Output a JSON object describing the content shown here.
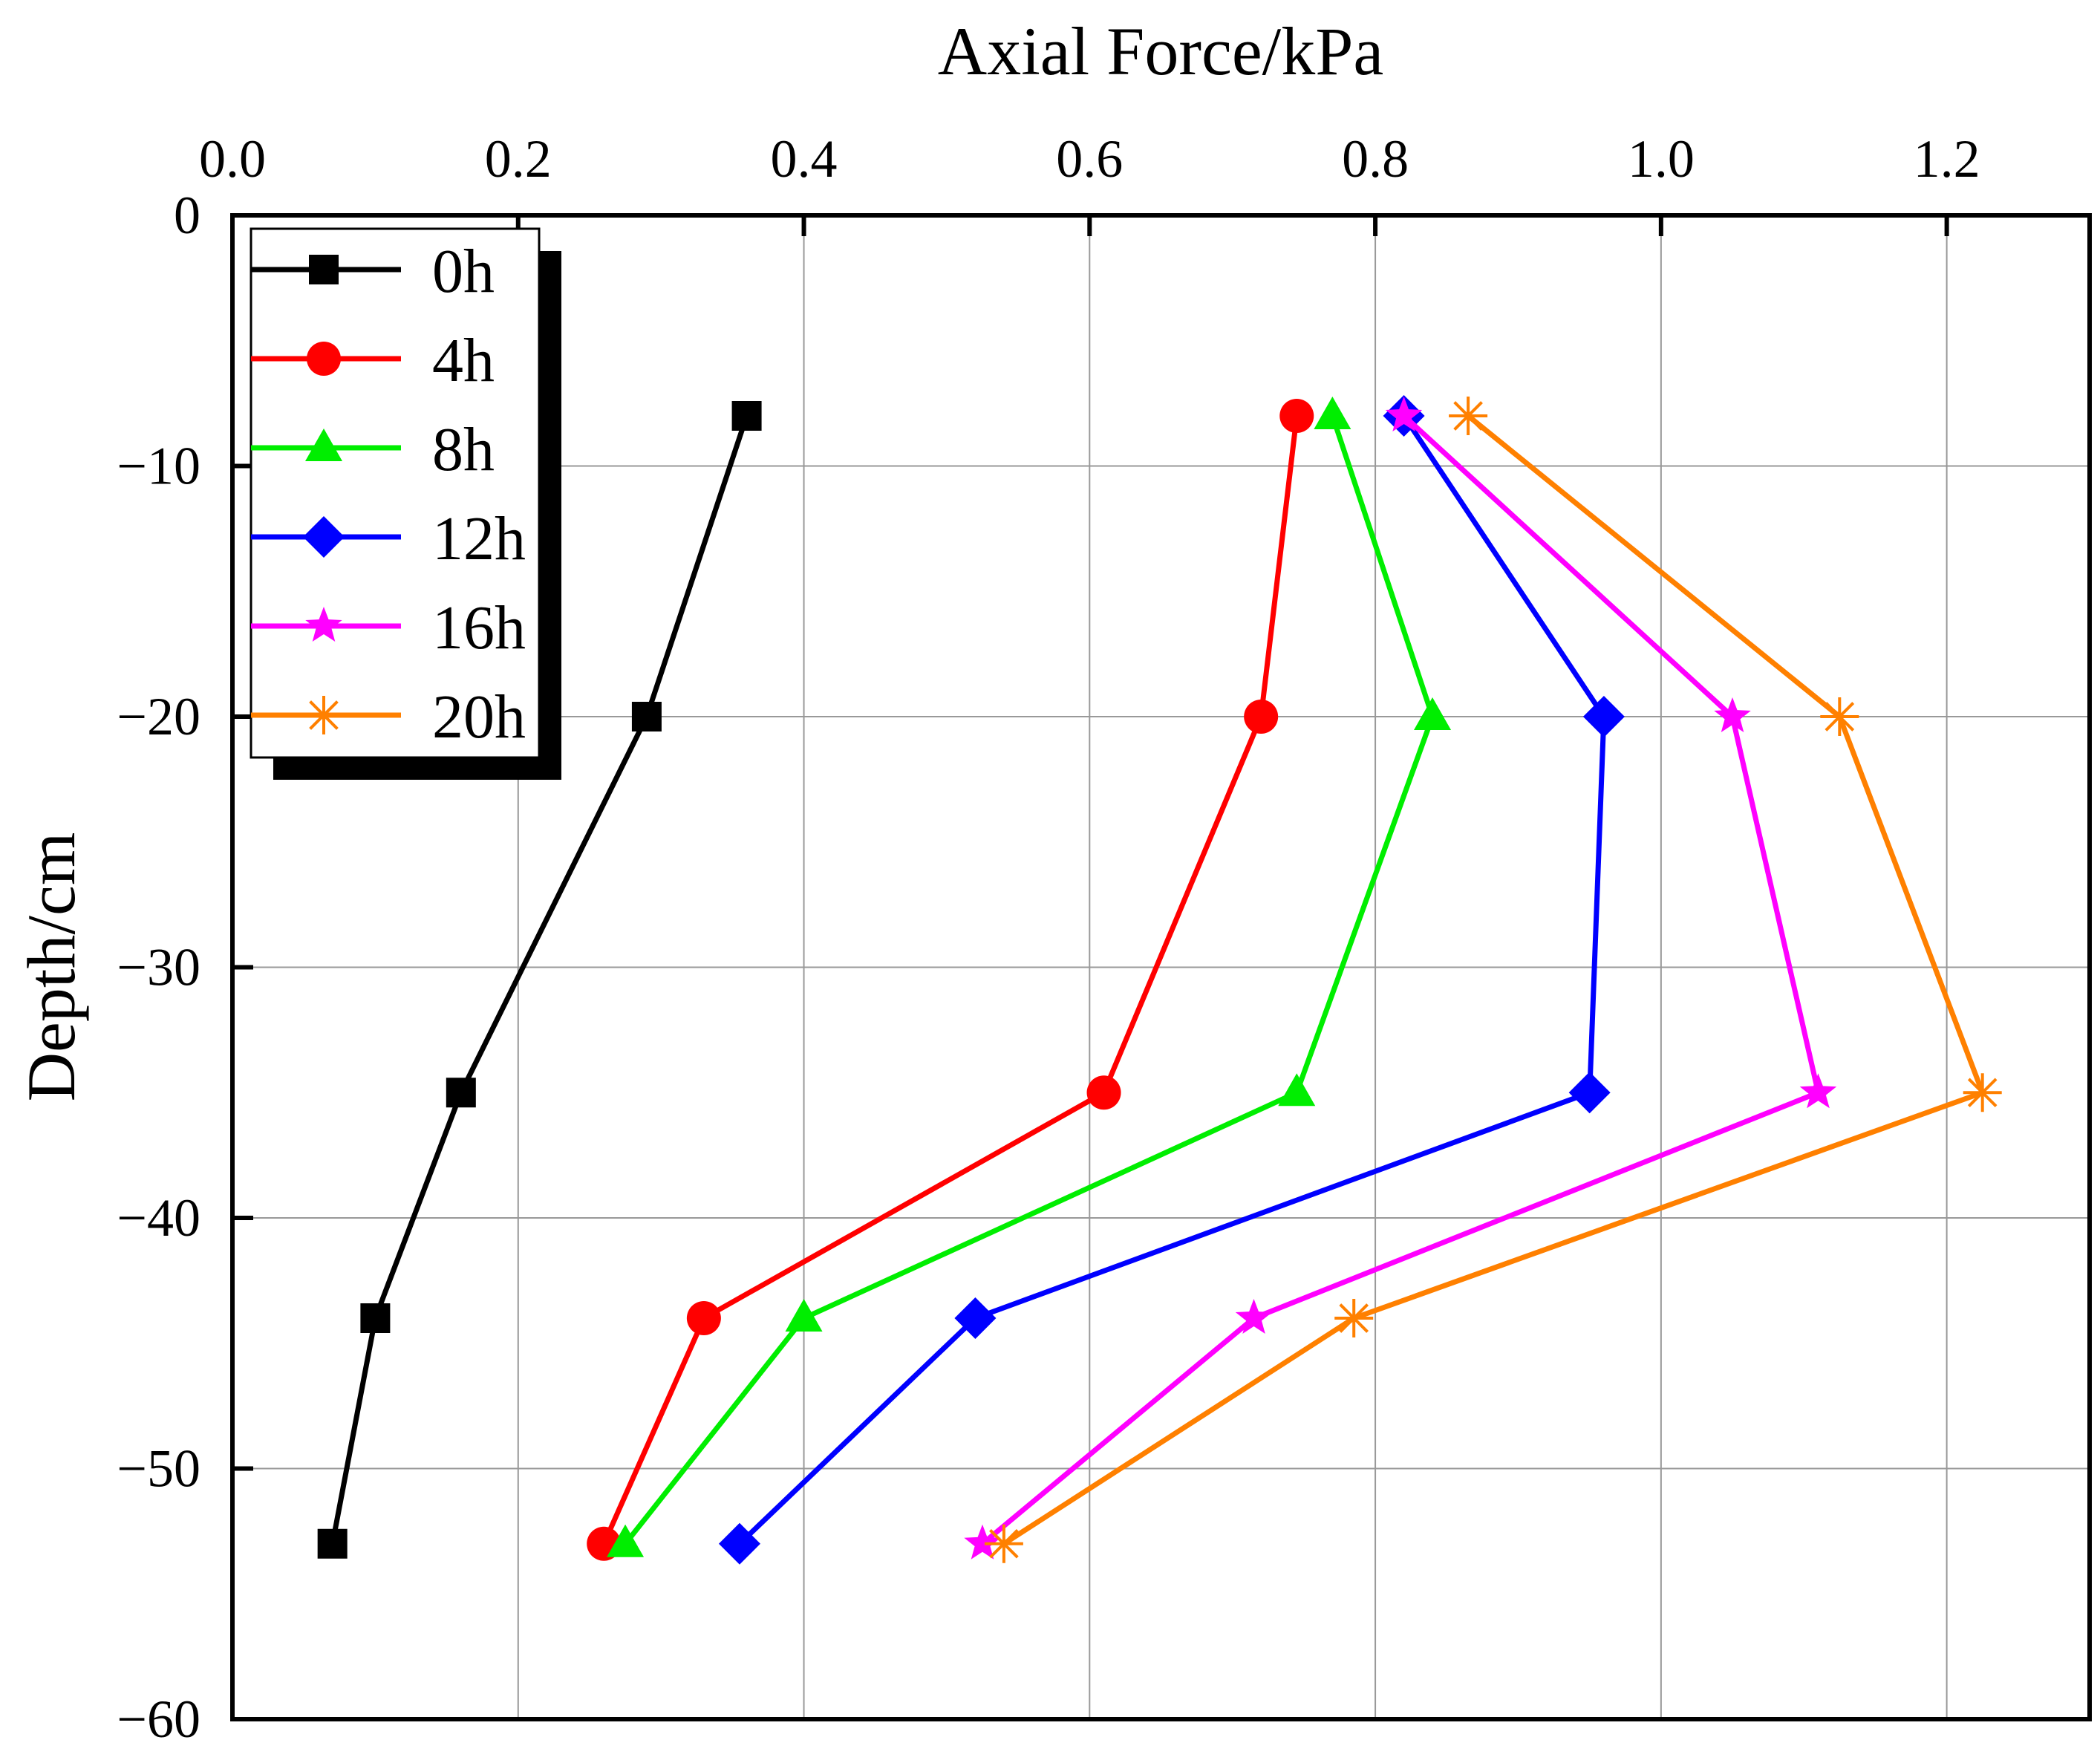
{
  "chart_data": {
    "type": "line",
    "title": "",
    "xlabel": "Axial Force/kPa",
    "ylabel": "Depth/cm",
    "xlim": [
      0,
      1.3
    ],
    "ylim": [
      -60,
      0
    ],
    "x_axis_position": "top",
    "xticks": [
      0.0,
      0.2,
      0.4,
      0.6,
      0.8,
      1.0,
      1.2
    ],
    "xtick_labels": [
      "0.0",
      "0.2",
      "0.4",
      "0.6",
      "0.8",
      "1.0",
      "1.2"
    ],
    "yticks": [
      0,
      -10,
      -20,
      -30,
      -40,
      -50,
      -60
    ],
    "ytick_labels": [
      "0",
      "−10",
      "−20",
      "−30",
      "−40",
      "−50",
      "−60"
    ],
    "grid": true,
    "legend_position": "top-left",
    "depths": [
      -8,
      -20,
      -35,
      -44,
      -53
    ],
    "series": [
      {
        "name": "0h",
        "color": "#000000",
        "marker": "square",
        "x": [
          0.36,
          0.29,
          0.16,
          0.1,
          0.07
        ]
      },
      {
        "name": "4h",
        "color": "#ff0000",
        "marker": "circle",
        "x": [
          0.745,
          0.72,
          0.61,
          0.33,
          0.26
        ]
      },
      {
        "name": "8h",
        "color": "#00ee00",
        "marker": "triangle",
        "x": [
          0.77,
          0.84,
          0.745,
          0.4,
          0.275
        ]
      },
      {
        "name": "12h",
        "color": "#0000ff",
        "marker": "diamond",
        "x": [
          0.82,
          0.96,
          0.95,
          0.52,
          0.355
        ]
      },
      {
        "name": "16h",
        "color": "#ff00ff",
        "marker": "star",
        "x": [
          0.82,
          1.05,
          1.11,
          0.715,
          0.525
        ]
      },
      {
        "name": "20h",
        "color": "#ff8000",
        "marker": "asterisk",
        "x": [
          0.865,
          1.125,
          1.225,
          0.785,
          0.54
        ]
      }
    ]
  }
}
